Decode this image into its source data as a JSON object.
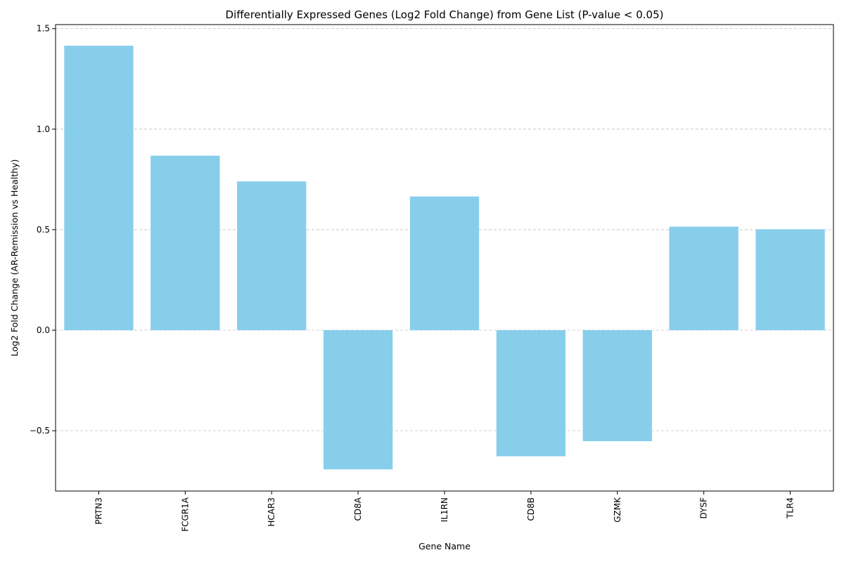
{
  "chart_data": {
    "type": "bar",
    "title": "Differentially Expressed Genes (Log2 Fold Change) from Gene List (P-value < 0.05)",
    "xlabel": "Gene Name",
    "ylabel": "Log2 Fold Change (AR-Remission vs Healthy)",
    "categories": [
      "PRTN3",
      "FCGR1A",
      "HCAR3",
      "CD8A",
      "IL1RN",
      "CD8B",
      "GZMK",
      "DYSF",
      "TLR4"
    ],
    "values": [
      1.415,
      0.868,
      0.74,
      -0.692,
      0.665,
      -0.627,
      -0.552,
      0.515,
      0.502
    ],
    "ylim": [
      -0.8,
      1.52
    ],
    "yticks": [
      -0.5,
      0.0,
      0.5,
      1.0,
      1.5
    ],
    "ytick_labels": [
      "−0.5",
      "0.0",
      "0.5",
      "1.0",
      "1.5"
    ],
    "bar_color": "#87CEEB",
    "grid": "y-dashed",
    "legend": "none"
  }
}
